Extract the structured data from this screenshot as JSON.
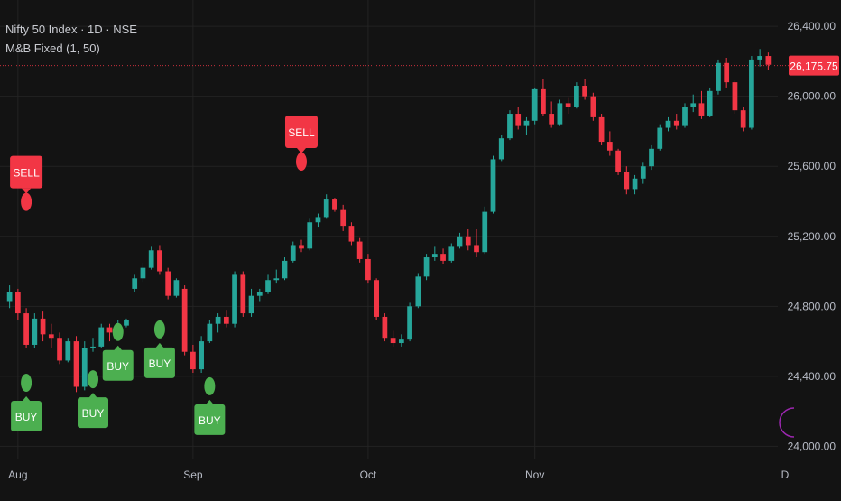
{
  "header": {
    "symbol_line": "Nifty 50 Index · 1D · NSE",
    "indicator_line": "M&B Fixed (1, 50)"
  },
  "colors": {
    "background": "#131313",
    "grid": "#232323",
    "up": "#26a69a",
    "down": "#f23645",
    "axis_text": "#b8bcc6",
    "buy_label": "#4caf50",
    "sell_label": "#f23645",
    "last_price_bg": "#f23645"
  },
  "chart_data": {
    "type": "candlestick",
    "title": "Nifty 50 Index · 1D · NSE",
    "indicator": "M&B Fixed (1, 50)",
    "y_ticks": [
      "26,400.00",
      "26,000.00",
      "25,600.00",
      "25,200.00",
      "24,800.00",
      "24,400.00",
      "24,000.00"
    ],
    "y_tick_values": [
      26400,
      26000,
      25600,
      25200,
      24800,
      24400,
      24000
    ],
    "ylim": [
      23930,
      26550
    ],
    "x_labels": [
      {
        "label": "Aug",
        "index": 1
      },
      {
        "label": "Sep",
        "index": 22
      },
      {
        "label": "Oct",
        "index": 43
      },
      {
        "label": "Nov",
        "index": 63
      },
      {
        "label": "D",
        "index": 82
      }
    ],
    "last_price": 26175.75,
    "last_price_label": "26,175.75",
    "grid": true,
    "candles": [
      [
        24830,
        24920,
        24790,
        24880
      ],
      [
        24880,
        24900,
        24720,
        24760
      ],
      [
        24760,
        24790,
        24560,
        24580
      ],
      [
        24580,
        24760,
        24560,
        24730
      ],
      [
        24730,
        24770,
        24600,
        24640
      ],
      [
        24640,
        24700,
        24560,
        24620
      ],
      [
        24620,
        24650,
        24470,
        24490
      ],
      [
        24490,
        24620,
        24480,
        24600
      ],
      [
        24600,
        24630,
        24310,
        24340
      ],
      [
        24340,
        24600,
        24320,
        24560
      ],
      [
        24560,
        24620,
        24540,
        24570
      ],
      [
        24570,
        24700,
        24560,
        24680
      ],
      [
        24680,
        24700,
        24600,
        24650
      ],
      [
        24650,
        24720,
        24630,
        24690
      ],
      [
        24690,
        24730,
        24680,
        24720
      ],
      [
        24900,
        24980,
        24880,
        24960
      ],
      [
        24960,
        25050,
        24940,
        25020
      ],
      [
        25020,
        25140,
        25010,
        25120
      ],
      [
        25120,
        25150,
        24980,
        25000
      ],
      [
        25000,
        25020,
        24840,
        24860
      ],
      [
        24860,
        24960,
        24850,
        24950
      ],
      [
        24900,
        24920,
        24520,
        24540
      ],
      [
        24540,
        24580,
        24420,
        24440
      ],
      [
        24440,
        24630,
        24420,
        24600
      ],
      [
        24600,
        24720,
        24590,
        24700
      ],
      [
        24700,
        24760,
        24650,
        24740
      ],
      [
        24740,
        24780,
        24680,
        24700
      ],
      [
        24700,
        25000,
        24680,
        24980
      ],
      [
        24980,
        25000,
        24740,
        24760
      ],
      [
        24760,
        24900,
        24740,
        24860
      ],
      [
        24860,
        24900,
        24830,
        24880
      ],
      [
        24880,
        24980,
        24870,
        24950
      ],
      [
        24950,
        25010,
        24930,
        24960
      ],
      [
        24960,
        25080,
        24950,
        25060
      ],
      [
        25060,
        25170,
        25050,
        25150
      ],
      [
        25150,
        25180,
        25110,
        25130
      ],
      [
        25130,
        25300,
        25120,
        25280
      ],
      [
        25280,
        25330,
        25250,
        25310
      ],
      [
        25310,
        25440,
        25300,
        25410
      ],
      [
        25410,
        25420,
        25340,
        25350
      ],
      [
        25350,
        25380,
        25230,
        25260
      ],
      [
        25260,
        25280,
        25150,
        25170
      ],
      [
        25170,
        25190,
        25050,
        25070
      ],
      [
        25070,
        25100,
        24930,
        24950
      ],
      [
        24950,
        24960,
        24720,
        24740
      ],
      [
        24740,
        24760,
        24600,
        24620
      ],
      [
        24620,
        24660,
        24570,
        24590
      ],
      [
        24590,
        24640,
        24570,
        24610
      ],
      [
        24610,
        24820,
        24600,
        24800
      ],
      [
        24800,
        24990,
        24790,
        24970
      ],
      [
        24970,
        25100,
        24950,
        25080
      ],
      [
        25080,
        25140,
        25060,
        25100
      ],
      [
        25100,
        25130,
        25040,
        25060
      ],
      [
        25060,
        25160,
        25050,
        25140
      ],
      [
        25140,
        25220,
        25130,
        25200
      ],
      [
        25200,
        25240,
        25120,
        25150
      ],
      [
        25150,
        25240,
        25080,
        25110
      ],
      [
        25110,
        25370,
        25100,
        25340
      ],
      [
        25340,
        25660,
        25330,
        25640
      ],
      [
        25640,
        25780,
        25630,
        25760
      ],
      [
        25760,
        25920,
        25750,
        25900
      ],
      [
        25900,
        25940,
        25810,
        25830
      ],
      [
        25830,
        25880,
        25780,
        25860
      ],
      [
        25860,
        26050,
        25840,
        26040
      ],
      [
        26040,
        26100,
        25890,
        25900
      ],
      [
        25900,
        25970,
        25820,
        25840
      ],
      [
        25840,
        25980,
        25830,
        25960
      ],
      [
        25960,
        25990,
        25900,
        25940
      ],
      [
        25940,
        26080,
        25930,
        26060
      ],
      [
        26060,
        26100,
        25980,
        26000
      ],
      [
        26000,
        26020,
        25860,
        25880
      ],
      [
        25880,
        25900,
        25720,
        25740
      ],
      [
        25740,
        25800,
        25660,
        25690
      ],
      [
        25690,
        25700,
        25550,
        25570
      ],
      [
        25570,
        25600,
        25440,
        25470
      ],
      [
        25470,
        25550,
        25440,
        25530
      ],
      [
        25530,
        25620,
        25500,
        25600
      ],
      [
        25600,
        25720,
        25580,
        25700
      ],
      [
        25700,
        25840,
        25690,
        25820
      ],
      [
        25820,
        25880,
        25800,
        25860
      ],
      [
        25860,
        25900,
        25810,
        25830
      ],
      [
        25830,
        25960,
        25820,
        25940
      ],
      [
        25940,
        26010,
        25910,
        25960
      ],
      [
        25960,
        26030,
        25870,
        25890
      ],
      [
        25890,
        26050,
        25880,
        26030
      ],
      [
        26030,
        26210,
        26010,
        26190
      ],
      [
        26190,
        26220,
        26050,
        26080
      ],
      [
        26080,
        26090,
        25900,
        25920
      ],
      [
        25920,
        25940,
        25800,
        25820
      ],
      [
        25820,
        26230,
        25810,
        26210
      ],
      [
        26210,
        26270,
        26170,
        26230
      ],
      [
        26230,
        26250,
        26150,
        26180
      ]
    ],
    "signals": [
      {
        "type": "SELL",
        "index": 2,
        "price": 25340
      },
      {
        "type": "BUY",
        "index": 2,
        "price": 24420
      },
      {
        "type": "BUY",
        "index": 10,
        "price": 24440
      },
      {
        "type": "BUY",
        "index": 13,
        "price": 24710
      },
      {
        "type": "BUY",
        "index": 18,
        "price": 24725
      },
      {
        "type": "BUY",
        "index": 24,
        "price": 24400
      },
      {
        "type": "SELL",
        "index": 35,
        "price": 25570
      }
    ]
  }
}
